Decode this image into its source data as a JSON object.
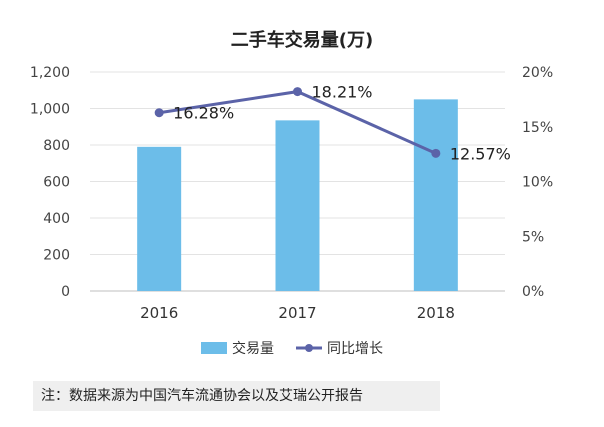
{
  "chart_data": {
    "type": "bar",
    "title": "二手车交易量(万)",
    "categories": [
      "2016",
      "2017",
      "2018"
    ],
    "series": [
      {
        "name": "交易量",
        "type": "bar",
        "axis": "left",
        "values": [
          790,
          935,
          1050
        ],
        "color": "#6cbde9"
      },
      {
        "name": "同比增长",
        "type": "line",
        "axis": "right",
        "values": [
          16.28,
          18.21,
          12.57
        ],
        "labels": [
          "16.28%",
          "18.21%",
          "12.57%"
        ],
        "color": "#5b63a8"
      }
    ],
    "y_left": {
      "range": [
        0,
        1200
      ],
      "ticks": [
        0,
        200,
        400,
        600,
        800,
        1000,
        1200
      ],
      "tick_labels": [
        "0",
        "200",
        "400",
        "600",
        "800",
        "1,000",
        "1,200"
      ]
    },
    "y_right": {
      "range": [
        0,
        20
      ],
      "ticks": [
        0,
        5,
        10,
        15,
        20
      ],
      "tick_labels": [
        "0%",
        "5%",
        "10%",
        "15%",
        "20%"
      ]
    },
    "grid": true,
    "legend_position": "bottom"
  },
  "note": "注：数据来源为中国汽车流通协会以及艾瑞公开报告"
}
